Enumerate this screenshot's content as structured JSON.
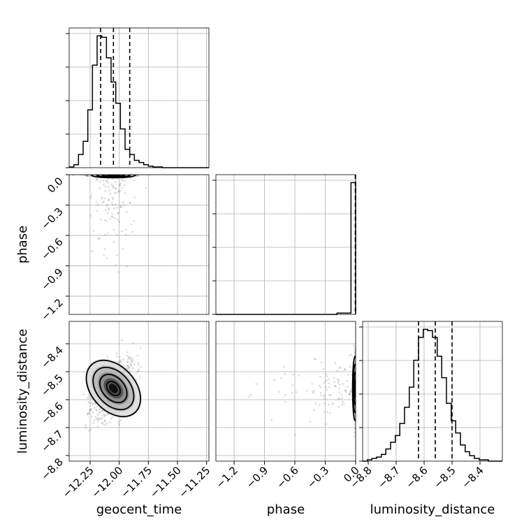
{
  "chart_data": {
    "type": "corner",
    "variables": [
      "geocent_time",
      "phase",
      "luminosity_distance"
    ],
    "axis_labels": {
      "geocent_time": "geocent_time",
      "phase": "phase",
      "luminosity_distance": "luminosity_distance"
    },
    "ranges": {
      "geocent_time": [
        -12.43,
        -11.23
      ],
      "phase": [
        -1.38,
        0.0
      ],
      "luminosity_distance": [
        -8.82,
        -8.32
      ]
    },
    "ticks": {
      "geocent_time": {
        "values": [
          -12.25,
          -12.0,
          -11.75,
          -11.5,
          -11.25
        ],
        "labels": [
          "−12.25",
          "−12.00",
          "−11.75",
          "−11.50",
          "−11.25"
        ]
      },
      "phase": {
        "values": [
          -1.2,
          -0.9,
          -0.6,
          -0.3,
          0.0
        ],
        "labels": [
          "−1.2",
          "−0.9",
          "−0.6",
          "−0.3",
          "0.0"
        ]
      },
      "luminosity_distance": {
        "values": [
          -8.8,
          -8.7,
          -8.6,
          -8.5,
          -8.4
        ],
        "labels": [
          "−8.8",
          "−8.7",
          "−8.6",
          "−8.5",
          "−8.4"
        ]
      }
    },
    "histograms": {
      "geocent_time": {
        "bin_edges": [
          -12.43,
          -12.39,
          -12.35,
          -12.31,
          -12.27,
          -12.23,
          -12.19,
          -12.15,
          -12.11,
          -12.07,
          -12.03,
          -11.99,
          -11.95,
          -11.91,
          -11.87,
          -11.83,
          -11.79,
          -11.75,
          -11.71,
          -11.67,
          -11.63,
          -11.59,
          -11.55,
          -11.51,
          -11.47,
          -11.43,
          -11.39,
          -11.35,
          -11.31,
          -11.27,
          -11.23
        ],
        "counts": [
          1,
          4,
          18,
          36,
          79,
          140,
          180,
          178,
          150,
          117,
          88,
          53,
          25,
          18,
          10,
          7,
          4,
          2,
          1,
          1,
          0,
          0,
          0,
          0,
          0,
          0,
          0,
          0,
          0,
          0
        ],
        "quantiles": [
          -12.16,
          -12.05,
          -11.91
        ]
      },
      "phase": {
        "bin_edges": [
          -1.38,
          -1.334,
          -1.288,
          -1.242,
          -1.196,
          -1.15,
          -1.104,
          -1.058,
          -1.012,
          -0.966,
          -0.92,
          -0.874,
          -0.828,
          -0.782,
          -0.736,
          -0.69,
          -0.644,
          -0.598,
          -0.552,
          -0.506,
          -0.46,
          -0.414,
          -0.368,
          -0.322,
          -0.276,
          -0.23,
          -0.184,
          -0.138,
          -0.092,
          -0.046,
          0.0
        ],
        "counts": [
          0,
          0,
          0,
          0,
          0,
          0,
          0,
          0,
          0,
          0,
          0,
          0,
          0,
          0,
          0,
          0,
          0,
          0,
          0,
          0,
          0,
          0,
          0,
          0,
          0,
          0,
          1,
          1,
          1,
          100
        ],
        "quantiles": [
          -0.003,
          -0.002,
          -0.001
        ]
      },
      "luminosity_distance": {
        "bin_edges": [
          -8.82,
          -8.803,
          -8.787,
          -8.77,
          -8.753,
          -8.737,
          -8.72,
          -8.703,
          -8.687,
          -8.67,
          -8.653,
          -8.637,
          -8.62,
          -8.603,
          -8.587,
          -8.57,
          -8.553,
          -8.537,
          -8.52,
          -8.503,
          -8.487,
          -8.47,
          -8.453,
          -8.437,
          -8.42,
          -8.403,
          -8.387,
          -8.37,
          -8.353,
          -8.337,
          -8.32
        ],
        "counts": [
          0,
          1,
          2,
          3,
          5,
          9,
          14,
          19,
          28,
          40,
          55,
          75,
          92,
          98,
          97,
          92,
          78,
          62,
          43,
          30,
          21,
          12,
          7,
          4,
          2,
          1,
          1,
          0,
          0,
          0
        ],
        "quantiles": [
          -8.62,
          -8.56,
          -8.5
        ]
      }
    },
    "joint_2d": [
      {
        "x": "geocent_time",
        "y": "phase",
        "peak": [
          -12.05,
          -0.005
        ],
        "contour_levels_sigma": [
          0.5,
          1.0,
          1.5,
          2.0
        ]
      },
      {
        "x": "geocent_time",
        "y": "luminosity_distance",
        "peak": [
          -12.05,
          -8.56
        ],
        "contour_levels_sigma": [
          0.5,
          1.0,
          1.5,
          2.0
        ]
      },
      {
        "x": "phase",
        "y": "luminosity_distance",
        "peak": [
          -0.005,
          -8.56
        ],
        "contour_levels_sigma": [
          0.5,
          1.0,
          1.5,
          2.0
        ]
      }
    ],
    "grid": true
  }
}
